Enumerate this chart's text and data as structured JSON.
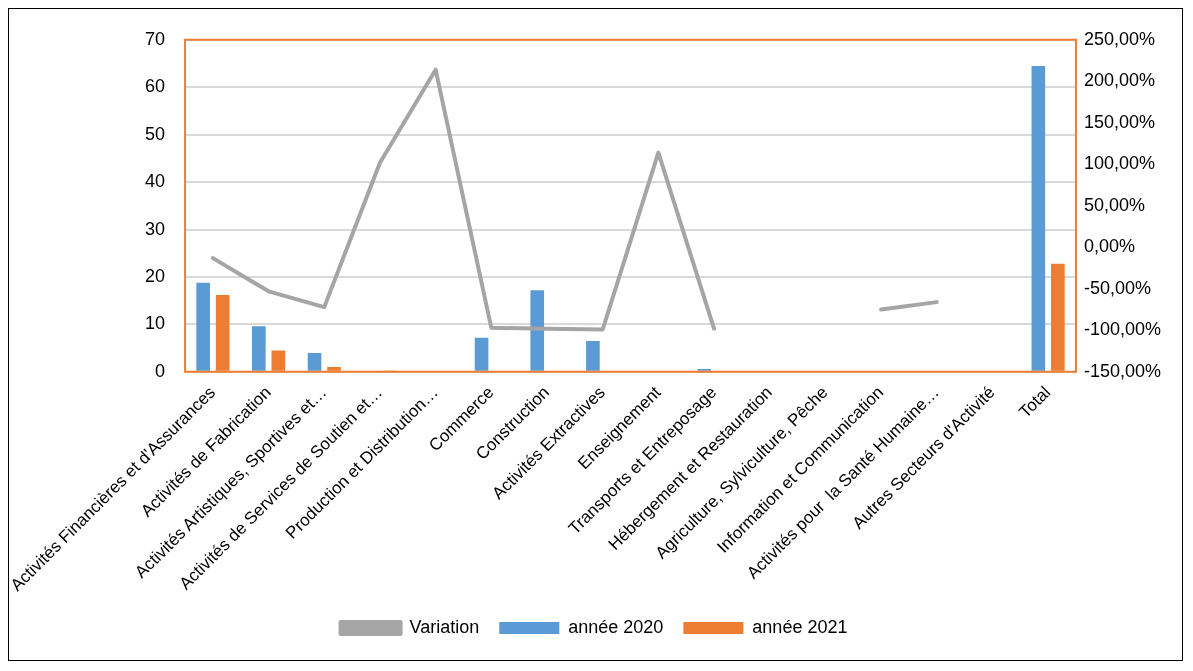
{
  "chart_data": {
    "type": "bar",
    "categories": [
      "Activités Financières et d'Assurances",
      "Activités de Fabrication",
      "Activités Artistiques, Sportives et…",
      "Activités de Services de Soutien et…",
      "Production et Distribution…",
      "Commerce",
      "Construction",
      "Activités Extractives",
      "Enseignement",
      "Transports et Entreposage",
      "Hébergement et Restauration",
      "Agriculture, Sylviculture, Pêche",
      "Information et Communication",
      "Activités pour  la Santé Humaine…",
      "Autres Secteurs d'Activité",
      "Total"
    ],
    "series": [
      {
        "name": "année 2020",
        "color": "#5b9bd5",
        "values": [
          18.8,
          9.6,
          4.0,
          0,
          0,
          7.2,
          17.2,
          6.5,
          0,
          0.6,
          0,
          0,
          0,
          0,
          0,
          64.5
        ]
      },
      {
        "name": "année 2021",
        "color": "#ed7d31",
        "values": [
          16.2,
          4.5,
          1.0,
          0.3,
          0,
          0,
          0,
          0,
          0,
          0,
          0,
          0,
          0,
          0,
          0,
          22.8
        ]
      },
      {
        "name": "Variation",
        "type": "line",
        "axis": "y2",
        "color": "#a5a5a5",
        "values": [
          -13,
          -53,
          -72,
          102,
          214,
          -97,
          -98,
          -99,
          114,
          -98,
          null,
          null,
          -75,
          -66,
          null,
          null
        ]
      }
    ],
    "ylim": [
      0,
      70
    ],
    "yticks": [
      0,
      10,
      20,
      30,
      40,
      50,
      60,
      70
    ],
    "y2lim": [
      -150,
      250
    ],
    "y2ticks": [
      {
        "value": -150,
        "label": "-150,00%"
      },
      {
        "value": -100,
        "label": "-100,00%"
      },
      {
        "value": -50,
        "label": "-50,00%"
      },
      {
        "value": 0,
        "label": "0,00%"
      },
      {
        "value": 50,
        "label": "50,00%"
      },
      {
        "value": 100,
        "label": "100,00%"
      },
      {
        "value": 150,
        "label": "150,00%"
      },
      {
        "value": 200,
        "label": "200,00%"
      },
      {
        "value": 250,
        "label": "250,00%"
      }
    ],
    "grid": "y",
    "legend": "bottom"
  }
}
